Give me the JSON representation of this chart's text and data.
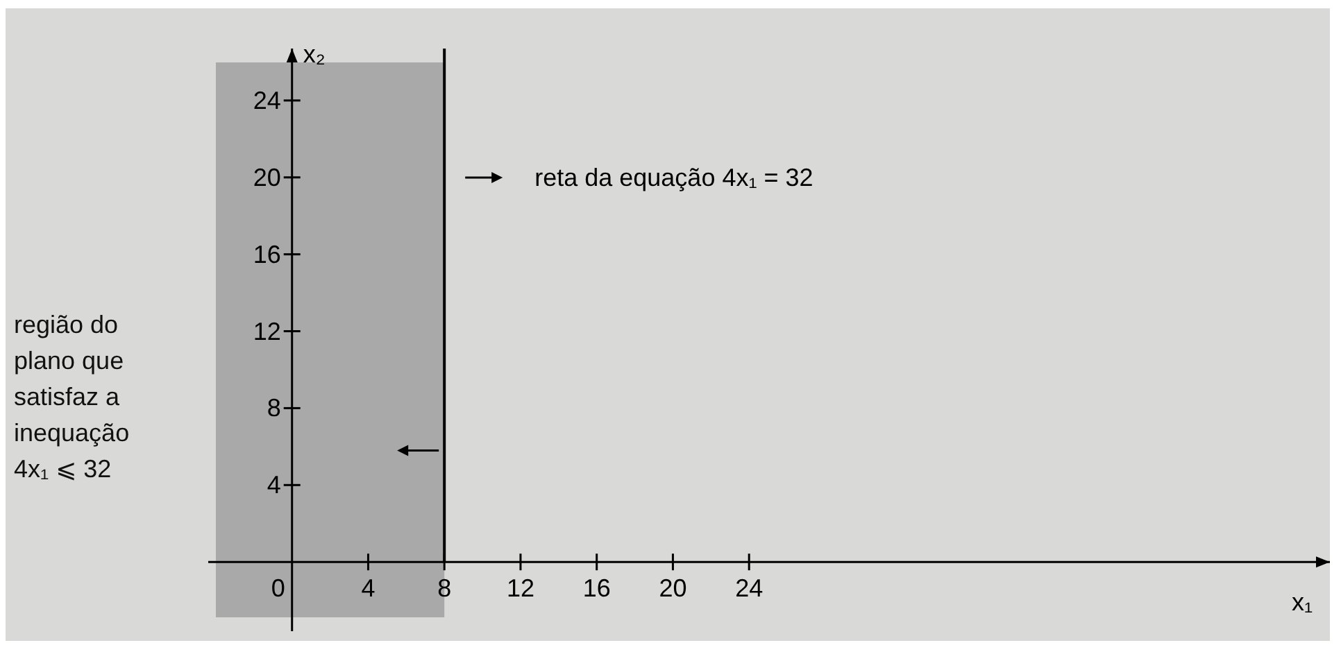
{
  "chart_data": {
    "type": "line",
    "xlabel": "x₁",
    "ylabel": "x₂",
    "xlim": [
      -4.4,
      54.5
    ],
    "ylim": [
      -3.6,
      26.7
    ],
    "xticks": [
      0,
      4,
      8,
      12,
      16,
      20,
      24
    ],
    "yticks": [
      4,
      8,
      12,
      16,
      20,
      24
    ],
    "ref_lines": [
      {
        "axis": "x",
        "value": 8,
        "color": "#000000"
      }
    ],
    "bands": [
      {
        "axis": "x",
        "from": -4,
        "to": 8,
        "color": "#a9a9a9"
      }
    ],
    "annotations": [
      "reta da equação 4x₁ = 32",
      "região do plano que satisfaz a inequação 4x₁ ⩽ 32"
    ]
  }
}
